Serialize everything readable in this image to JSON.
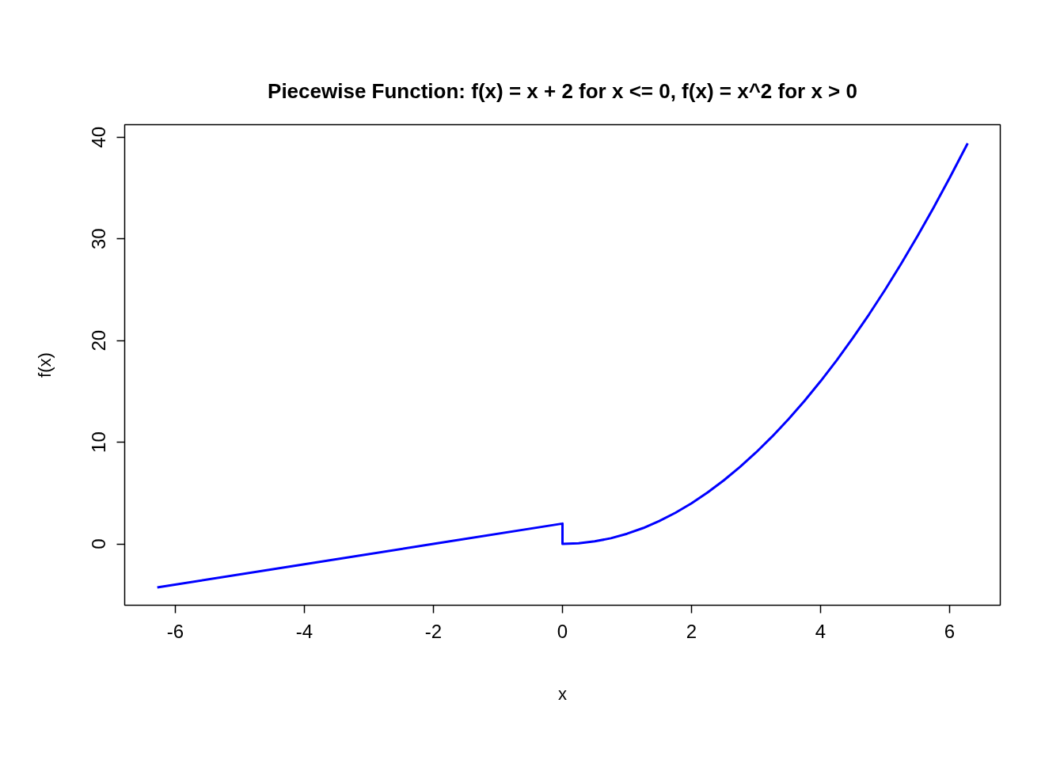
{
  "chart_data": {
    "type": "line",
    "title": "Piecewise Function: f(x) = x + 2 for x <= 0, f(x) = x^2 for x > 0",
    "xlabel": "x",
    "ylabel": "f(x)",
    "xlim": [
      -6.785,
      6.785
    ],
    "ylim": [
      -6.03,
      41.23
    ],
    "xticks": [
      -6,
      -4,
      -2,
      0,
      2,
      4,
      6
    ],
    "yticks": [
      0,
      10,
      20,
      30,
      40
    ],
    "grid": false,
    "marker": "none",
    "line_style": "solid",
    "series": [
      {
        "color": "#0000ff",
        "x": [
          -6.28,
          -4,
          -2,
          0,
          0,
          0.25,
          0.5,
          0.75,
          1,
          1.25,
          1.5,
          1.75,
          2,
          2.25,
          2.5,
          2.75,
          3,
          3.25,
          3.5,
          3.75,
          4,
          4.25,
          4.5,
          4.75,
          5,
          5.25,
          5.5,
          5.75,
          6,
          6.28
        ],
        "values": [
          -4.28,
          -2,
          0,
          2,
          0,
          0.06,
          0.25,
          0.56,
          1,
          1.56,
          2.25,
          3.06,
          4,
          5.06,
          6.25,
          7.56,
          9,
          10.56,
          12.25,
          14.06,
          16,
          18.06,
          20.25,
          22.56,
          25,
          27.56,
          30.25,
          33.06,
          36,
          39.4
        ]
      }
    ]
  }
}
